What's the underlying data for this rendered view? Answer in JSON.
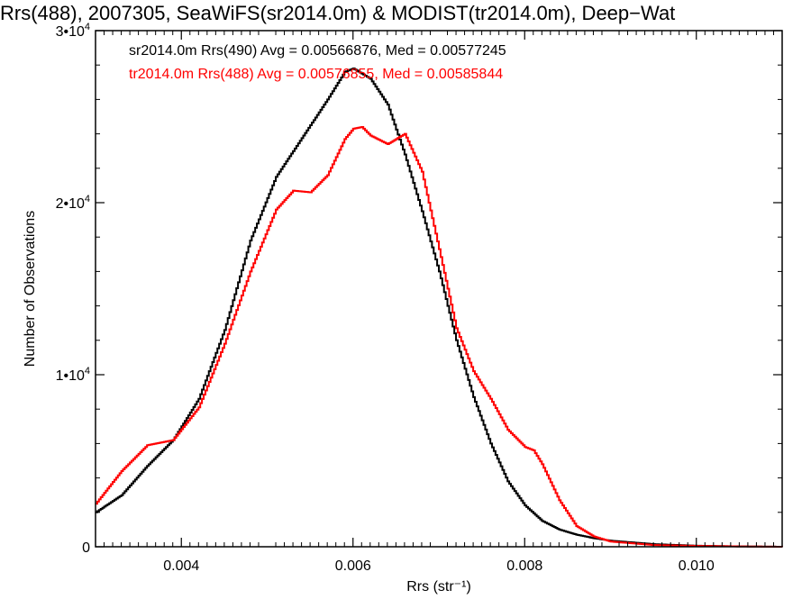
{
  "chart_data": {
    "type": "line",
    "title": "Rrs(488), 2007305, SeaWiFS(sr2014.0m) & MODIST(tr2014.0m), Deep−Wat",
    "xlabel": "Rrs (str⁻¹)",
    "ylabel": "Number of Observations",
    "xlim": [
      0.003,
      0.011
    ],
    "ylim": [
      0,
      30000
    ],
    "x_ticks": [
      {
        "value": 0.004,
        "label": "0.004"
      },
      {
        "value": 0.006,
        "label": "0.006"
      },
      {
        "value": 0.008,
        "label": "0.008"
      },
      {
        "value": 0.01,
        "label": "0.010"
      }
    ],
    "y_ticks": [
      {
        "value": 0,
        "mantissa": "0",
        "exp": ""
      },
      {
        "value": 10000,
        "mantissa": "1•10",
        "exp": "4"
      },
      {
        "value": 20000,
        "mantissa": "2•10",
        "exp": "4"
      },
      {
        "value": 30000,
        "mantissa": "3•10",
        "exp": "4"
      }
    ],
    "annotations": [
      {
        "text": "sr2014.0m Rrs(490) Avg = 0.00566876, Med = 0.00577245",
        "color": "#000000"
      },
      {
        "text": "tr2014.0m Rrs(488) Avg = 0.00576855, Med = 0.00585844",
        "color": "#ff0000"
      }
    ],
    "series": [
      {
        "color": "#000000",
        "x": [
          0.003,
          0.0033,
          0.0036,
          0.0039,
          0.0042,
          0.0045,
          0.0048,
          0.0051,
          0.0053,
          0.0055,
          0.0057,
          0.0059,
          0.006,
          0.0062,
          0.0064,
          0.0066,
          0.0068,
          0.007,
          0.0072,
          0.0074,
          0.0076,
          0.0078,
          0.008,
          0.0082,
          0.0084,
          0.0086,
          0.0088,
          0.009,
          0.0095,
          0.01,
          0.0105,
          0.011
        ],
        "y": [
          2000,
          3000,
          4700,
          6200,
          8600,
          12600,
          17800,
          21500,
          23000,
          24500,
          26000,
          27600,
          27800,
          27200,
          25700,
          22800,
          19500,
          16000,
          12000,
          8700,
          6000,
          3800,
          2400,
          1500,
          1000,
          700,
          500,
          350,
          150,
          60,
          20,
          0
        ]
      },
      {
        "color": "#ff0000",
        "x": [
          0.003,
          0.0033,
          0.0036,
          0.0039,
          0.0042,
          0.0045,
          0.0048,
          0.0051,
          0.0053,
          0.0055,
          0.0057,
          0.0059,
          0.006,
          0.0061,
          0.0062,
          0.0064,
          0.0066,
          0.0068,
          0.007,
          0.0072,
          0.0074,
          0.0076,
          0.0078,
          0.008,
          0.0081,
          0.0082,
          0.0084,
          0.0086,
          0.0088,
          0.009,
          0.0095,
          0.01,
          0.0105,
          0.011
        ],
        "y": [
          2500,
          4400,
          5900,
          6200,
          8100,
          11800,
          16000,
          19600,
          20700,
          20600,
          21600,
          23700,
          24300,
          24400,
          23900,
          23400,
          24000,
          21800,
          17300,
          12700,
          10200,
          8600,
          6800,
          5800,
          5600,
          4800,
          2700,
          1200,
          600,
          300,
          100,
          50,
          20,
          0
        ]
      }
    ]
  }
}
